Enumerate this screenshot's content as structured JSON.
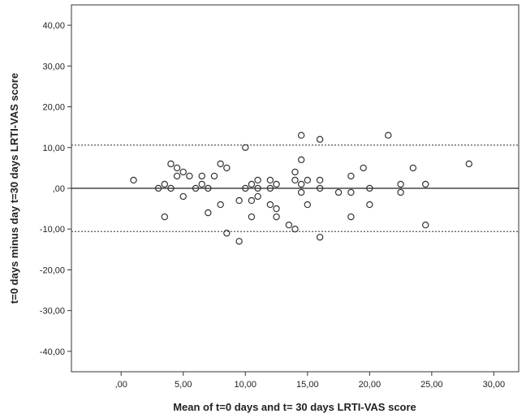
{
  "chart_data": {
    "type": "scatter",
    "xlabel": "Mean of t=0 days and t= 30 days LRTI-VAS score",
    "ylabel": "t=0 days minus day t=30 days LRTI-VAS score",
    "xlim": [
      -4,
      32
    ],
    "ylim": [
      -45,
      45
    ],
    "x_ticks": [
      ",00",
      "5,00",
      "10,00",
      "15,00",
      "20,00",
      "25,00",
      "30,00"
    ],
    "x_tick_values": [
      0,
      5,
      10,
      15,
      20,
      25,
      30
    ],
    "y_ticks": [
      "40,00",
      "30,00",
      "20,00",
      "10,00",
      ",00",
      "-10,00",
      "-20,00",
      "-30,00",
      "-40,00"
    ],
    "y_tick_values": [
      40,
      30,
      20,
      10,
      0,
      -10,
      -20,
      -30,
      -40
    ],
    "reference_lines": [
      {
        "y": 10.6,
        "style": "dotted"
      },
      {
        "y": 0,
        "style": "solid"
      },
      {
        "y": -10.6,
        "style": "dotted"
      }
    ],
    "grid": false,
    "marker": "open-circle",
    "points": [
      [
        1.0,
        2
      ],
      [
        3.0,
        0
      ],
      [
        3.5,
        1
      ],
      [
        3.5,
        -7
      ],
      [
        4.0,
        6
      ],
      [
        4.0,
        0
      ],
      [
        4.5,
        5
      ],
      [
        4.5,
        3
      ],
      [
        5.0,
        4
      ],
      [
        5.0,
        -2
      ],
      [
        5.5,
        3
      ],
      [
        6.0,
        0
      ],
      [
        6.5,
        3
      ],
      [
        6.5,
        1
      ],
      [
        7.0,
        0
      ],
      [
        7.0,
        -6
      ],
      [
        7.5,
        3
      ],
      [
        8.0,
        6
      ],
      [
        8.0,
        -4
      ],
      [
        8.5,
        5
      ],
      [
        8.5,
        -11
      ],
      [
        9.5,
        -13
      ],
      [
        9.5,
        -3
      ],
      [
        10.0,
        10
      ],
      [
        10.0,
        0
      ],
      [
        10.5,
        1
      ],
      [
        10.5,
        -3
      ],
      [
        10.5,
        -7
      ],
      [
        11.0,
        2
      ],
      [
        11.0,
        0
      ],
      [
        11.0,
        -2
      ],
      [
        12.0,
        2
      ],
      [
        12.0,
        0
      ],
      [
        12.0,
        -4
      ],
      [
        12.5,
        1
      ],
      [
        12.5,
        -5
      ],
      [
        12.5,
        -7
      ],
      [
        13.5,
        -9
      ],
      [
        14.0,
        4
      ],
      [
        14.0,
        2
      ],
      [
        14.0,
        -10
      ],
      [
        14.5,
        13
      ],
      [
        14.5,
        7
      ],
      [
        14.5,
        1
      ],
      [
        14.5,
        -1
      ],
      [
        15.0,
        2
      ],
      [
        15.0,
        -4
      ],
      [
        16.0,
        12
      ],
      [
        16.0,
        2
      ],
      [
        16.0,
        0
      ],
      [
        16.0,
        -12
      ],
      [
        17.5,
        -1
      ],
      [
        18.5,
        3
      ],
      [
        18.5,
        -1
      ],
      [
        18.5,
        -7
      ],
      [
        19.5,
        5
      ],
      [
        20.0,
        0
      ],
      [
        20.0,
        -4
      ],
      [
        21.5,
        13
      ],
      [
        22.5,
        1
      ],
      [
        22.5,
        -1
      ],
      [
        23.5,
        5
      ],
      [
        24.5,
        1
      ],
      [
        24.5,
        -9
      ],
      [
        28.0,
        6
      ]
    ]
  }
}
